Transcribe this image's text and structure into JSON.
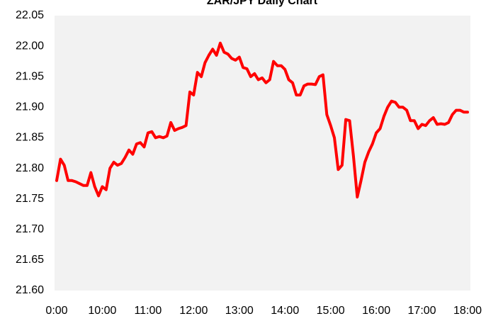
{
  "chart_data": {
    "type": "line",
    "title": "ZAR/JPY Daily Chart",
    "categories": [
      "0:00",
      null,
      null,
      null,
      null,
      null,
      null,
      null,
      null,
      null,
      null,
      null,
      "10:00",
      null,
      null,
      null,
      null,
      null,
      null,
      null,
      null,
      null,
      null,
      null,
      "11:00",
      null,
      null,
      null,
      null,
      null,
      null,
      null,
      null,
      null,
      null,
      null,
      "12:00",
      null,
      null,
      null,
      null,
      null,
      null,
      null,
      null,
      null,
      null,
      null,
      "13:00",
      null,
      null,
      null,
      null,
      null,
      null,
      null,
      null,
      null,
      null,
      null,
      "14:00",
      null,
      null,
      null,
      null,
      null,
      null,
      null,
      null,
      null,
      null,
      null,
      "15:00",
      null,
      null,
      null,
      null,
      null,
      null,
      null,
      null,
      null,
      null,
      null,
      "16:00",
      null,
      null,
      null,
      null,
      null,
      null,
      null,
      null,
      null,
      null,
      null,
      "17:00",
      null,
      null,
      null,
      null,
      null,
      null,
      null,
      null,
      null,
      null,
      null,
      "18:00"
    ],
    "values": [
      21.78,
      21.815,
      21.805,
      21.78,
      21.78,
      21.778,
      21.775,
      21.772,
      21.772,
      21.793,
      21.77,
      21.755,
      21.77,
      21.765,
      21.8,
      21.81,
      21.805,
      21.808,
      21.818,
      21.83,
      21.823,
      21.84,
      21.842,
      21.835,
      21.858,
      21.86,
      21.85,
      21.852,
      21.85,
      21.853,
      21.875,
      21.862,
      21.865,
      21.867,
      21.87,
      21.925,
      21.92,
      21.957,
      21.95,
      21.973,
      21.985,
      21.995,
      21.985,
      22.005,
      21.99,
      21.987,
      21.98,
      21.977,
      21.982,
      21.965,
      21.963,
      21.95,
      21.955,
      21.945,
      21.948,
      21.94,
      21.945,
      21.975,
      21.968,
      21.968,
      21.962,
      21.945,
      21.94,
      21.92,
      21.92,
      21.935,
      21.938,
      21.938,
      21.937,
      21.95,
      21.953,
      21.888,
      21.87,
      21.85,
      21.798,
      21.805,
      21.88,
      21.878,
      21.82,
      21.753,
      21.78,
      21.81,
      21.827,
      21.84,
      21.858,
      21.865,
      21.885,
      21.9,
      21.91,
      21.908,
      21.9,
      21.9,
      21.895,
      21.878,
      21.878,
      21.865,
      21.872,
      21.87,
      21.878,
      21.883,
      21.872,
      21.873,
      21.872,
      21.875,
      21.888,
      21.895,
      21.895,
      21.892,
      21.892
    ],
    "color": "#ff0000",
    "ylim": [
      21.6,
      22.05
    ],
    "yticks": [
      {
        "value": 21.6,
        "label": "21.60"
      },
      {
        "value": 21.65,
        "label": "21.65"
      },
      {
        "value": 21.7,
        "label": "21.70"
      },
      {
        "value": 21.75,
        "label": "21.75"
      },
      {
        "value": 21.8,
        "label": "21.80"
      },
      {
        "value": 21.85,
        "label": "21.85"
      },
      {
        "value": 21.9,
        "label": "21.90"
      },
      {
        "value": 21.95,
        "label": "21.95"
      },
      {
        "value": 22.0,
        "label": "22.00"
      },
      {
        "value": 22.05,
        "label": "22.05"
      }
    ]
  }
}
